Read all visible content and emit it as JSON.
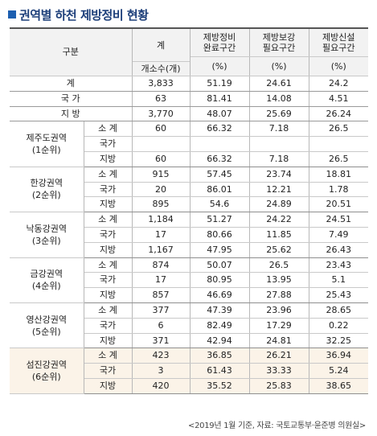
{
  "title": "권역별 하천 제방정비 현황",
  "header": {
    "gubun": "구분",
    "gye": "계",
    "count_unit": "개소수(개)",
    "col1_line1": "제방정비",
    "col1_line2": "완료구간",
    "col2_line1": "제방보강",
    "col2_line2": "필요구간",
    "col3_line1": "제방신설",
    "col3_line2": "필요구간",
    "pct": "(%)"
  },
  "totals": [
    {
      "label": "계",
      "count": "3,833",
      "complete": "51.19",
      "reinforce": "24.61",
      "new": "24.2"
    },
    {
      "label": "국 가",
      "count": "63",
      "complete": "81.41",
      "reinforce": "14.08",
      "new": "4.51"
    },
    {
      "label": "지 방",
      "count": "3,770",
      "complete": "48.07",
      "reinforce": "25.69",
      "new": "26.24"
    }
  ],
  "regions": [
    {
      "name": "제주도권역",
      "rank": "(1순위)",
      "rows": [
        {
          "label": "소 계",
          "count": "60",
          "complete": "66.32",
          "reinforce": "7.18",
          "new": "26.5"
        },
        {
          "label": "국가",
          "count": "",
          "complete": "",
          "reinforce": "",
          "new": ""
        },
        {
          "label": "지방",
          "count": "60",
          "complete": "66.32",
          "reinforce": "7.18",
          "new": "26.5"
        }
      ]
    },
    {
      "name": "한강권역",
      "rank": "(2순위)",
      "rows": [
        {
          "label": "소 계",
          "count": "915",
          "complete": "57.45",
          "reinforce": "23.74",
          "new": "18.81"
        },
        {
          "label": "국가",
          "count": "20",
          "complete": "86.01",
          "reinforce": "12.21",
          "new": "1.78"
        },
        {
          "label": "지방",
          "count": "895",
          "complete": "54.6",
          "reinforce": "24.89",
          "new": "20.51"
        }
      ]
    },
    {
      "name": "낙동강권역",
      "rank": "(3순위)",
      "rows": [
        {
          "label": "소 계",
          "count": "1,184",
          "complete": "51.27",
          "reinforce": "24.22",
          "new": "24.51"
        },
        {
          "label": "국가",
          "count": "17",
          "complete": "80.66",
          "reinforce": "11.85",
          "new": "7.49"
        },
        {
          "label": "지방",
          "count": "1,167",
          "complete": "47.95",
          "reinforce": "25.62",
          "new": "26.43"
        }
      ]
    },
    {
      "name": "금강권역",
      "rank": "(4순위)",
      "rows": [
        {
          "label": "소 계",
          "count": "874",
          "complete": "50.07",
          "reinforce": "26.5",
          "new": "23.43"
        },
        {
          "label": "국가",
          "count": "17",
          "complete": "80.95",
          "reinforce": "13.95",
          "new": "5.1"
        },
        {
          "label": "지방",
          "count": "857",
          "complete": "46.69",
          "reinforce": "27.88",
          "new": "25.43"
        }
      ]
    },
    {
      "name": "영산강권역",
      "rank": "(5순위)",
      "rows": [
        {
          "label": "소 계",
          "count": "377",
          "complete": "47.39",
          "reinforce": "23.96",
          "new": "28.65"
        },
        {
          "label": "국가",
          "count": "6",
          "complete": "82.49",
          "reinforce": "17.29",
          "new": "0.22"
        },
        {
          "label": "지방",
          "count": "371",
          "complete": "42.94",
          "reinforce": "24.81",
          "new": "32.25"
        }
      ]
    },
    {
      "name": "섬진강권역",
      "rank": "(6순위)",
      "rows": [
        {
          "label": "소 계",
          "count": "423",
          "complete": "36.85",
          "reinforce": "26.21",
          "new": "36.94"
        },
        {
          "label": "국가",
          "count": "3",
          "complete": "61.43",
          "reinforce": "33.33",
          "new": "5.24"
        },
        {
          "label": "지방",
          "count": "420",
          "complete": "35.52",
          "reinforce": "25.83",
          "new": "38.65"
        }
      ]
    }
  ],
  "source": "<2019년 1월 기준, 자료: 국토교통부·윤준병 의원실>"
}
